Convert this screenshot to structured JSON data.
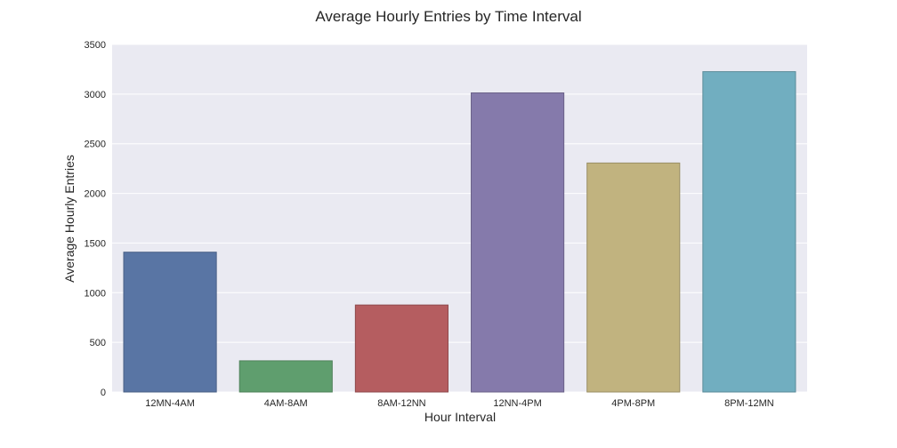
{
  "chart_data": {
    "type": "bar",
    "title": "Average Hourly Entries by Time Interval",
    "xlabel": "Hour Interval",
    "ylabel": "Average Hourly Entries",
    "categories": [
      "12MN-4AM",
      "4AM-8AM",
      "8AM-12NN",
      "12NN-4PM",
      "4PM-8PM",
      "8PM-12MN"
    ],
    "values": [
      1408,
      314,
      876,
      3012,
      2306,
      3226
    ],
    "ylim": [
      0,
      3500
    ],
    "yticks": [
      0,
      500,
      1000,
      1500,
      2000,
      2500,
      3000,
      3500
    ],
    "grid": true,
    "legend": "none",
    "colors": [
      "#5975a4",
      "#5f9e6e",
      "#b55d60",
      "#857aab",
      "#c1b37f",
      "#71aec0"
    ],
    "edge_colors": [
      "#4a6085",
      "#4e8059",
      "#8f4a4c",
      "#6a6188",
      "#9a8f66",
      "#5a8b99"
    ],
    "background": "#eaeaf2",
    "grid_color": "#ffffff"
  }
}
